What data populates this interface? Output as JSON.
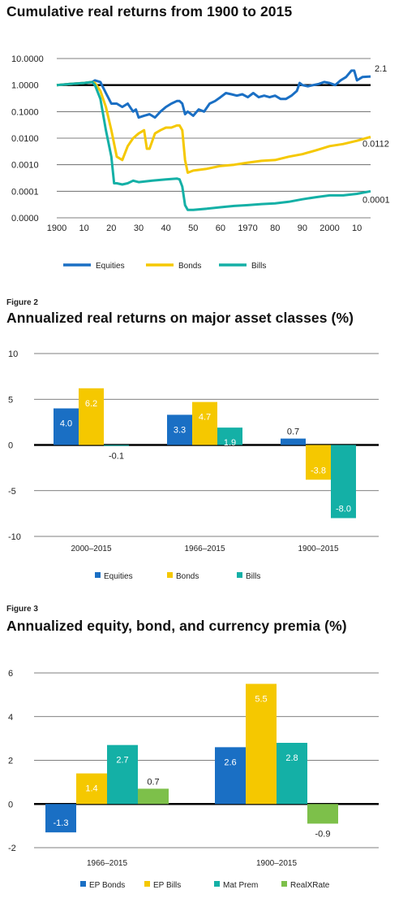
{
  "fig1": {
    "title": "Cumulative real returns from 1900 to 2015",
    "y_ticks": [
      "10.0000",
      "1.0000",
      "0.1000",
      "0.0100",
      "0.0010",
      "0.0001",
      "0.0000"
    ],
    "x_ticks": [
      "1900",
      "10",
      "20",
      "30",
      "40",
      "50",
      "60",
      "1970",
      "80",
      "90",
      "2000",
      "10"
    ],
    "end_labels": [
      "2.1",
      "0.0112",
      "0.0001"
    ],
    "legend": [
      "Equities",
      "Bonds",
      "Bills"
    ]
  },
  "fig2": {
    "label": "Figure 2",
    "title": "Annualized real returns on major asset classes (%)",
    "y_ticks": [
      "10",
      "5",
      "0",
      "-5",
      "-10"
    ],
    "legend": [
      "Equities",
      "Bonds",
      "Bills"
    ]
  },
  "fig3": {
    "label": "Figure 3",
    "title": "Annualized equity, bond, and currency premia (%)",
    "y_ticks": [
      "6",
      "4",
      "2",
      "0",
      "-2"
    ],
    "legend": [
      "EP Bonds",
      "EP Bills",
      "Mat Prem",
      "RealXRate"
    ]
  },
  "colors": {
    "blue": "#1a6fc4",
    "yellow": "#f5c800",
    "teal": "#14b0a6",
    "green": "#7dc04a"
  },
  "chart_data": [
    {
      "type": "line",
      "title": "Cumulative real returns from 1900 to 2015",
      "log_scale": true,
      "ylim": [
        1e-05,
        10
      ],
      "xlim": [
        1900,
        2015
      ],
      "series": [
        {
          "name": "Equities",
          "x": [
            1900,
            1905,
            1910,
            1913,
            1914,
            1916,
            1918,
            1920,
            1922,
            1924,
            1926,
            1928,
            1929,
            1930,
            1932,
            1934,
            1936,
            1938,
            1940,
            1942,
            1944,
            1945,
            1946,
            1947,
            1948,
            1950,
            1952,
            1954,
            1956,
            1958,
            1960,
            1962,
            1964,
            1966,
            1968,
            1970,
            1972,
            1974,
            1976,
            1978,
            1980,
            1982,
            1984,
            1986,
            1988,
            1989,
            1990,
            1992,
            1994,
            1996,
            1998,
            2000,
            2002,
            2004,
            2006,
            2008,
            2009,
            2010,
            2012,
            2015
          ],
          "y": [
            1.0,
            1.1,
            1.2,
            1.3,
            1.5,
            1.3,
            0.5,
            0.2,
            0.2,
            0.15,
            0.2,
            0.1,
            0.12,
            0.06,
            0.07,
            0.08,
            0.06,
            0.1,
            0.15,
            0.2,
            0.25,
            0.25,
            0.2,
            0.08,
            0.1,
            0.07,
            0.12,
            0.1,
            0.2,
            0.25,
            0.35,
            0.5,
            0.45,
            0.4,
            0.45,
            0.35,
            0.5,
            0.35,
            0.4,
            0.35,
            0.4,
            0.3,
            0.3,
            0.4,
            0.6,
            1.2,
            1.0,
            0.9,
            1.0,
            1.1,
            1.3,
            1.2,
            1.0,
            1.5,
            2.0,
            3.5,
            3.5,
            1.5,
            2.0,
            2.1
          ]
        },
        {
          "name": "Bonds",
          "x": [
            1900,
            1905,
            1910,
            1913,
            1914,
            1916,
            1918,
            1920,
            1922,
            1924,
            1926,
            1928,
            1930,
            1932,
            1933,
            1934,
            1936,
            1938,
            1940,
            1942,
            1944,
            1945,
            1946,
            1947,
            1948,
            1950,
            1955,
            1960,
            1965,
            1970,
            1975,
            1980,
            1985,
            1990,
            1995,
            2000,
            2005,
            2010,
            2015
          ],
          "y": [
            1.0,
            1.1,
            1.2,
            1.3,
            1.2,
            0.6,
            0.15,
            0.02,
            0.002,
            0.0015,
            0.005,
            0.01,
            0.015,
            0.02,
            0.004,
            0.004,
            0.015,
            0.02,
            0.025,
            0.025,
            0.03,
            0.03,
            0.02,
            0.0015,
            0.0005,
            0.0006,
            0.0007,
            0.0009,
            0.001,
            0.0012,
            0.0014,
            0.0015,
            0.002,
            0.0025,
            0.0035,
            0.005,
            0.006,
            0.008,
            0.0112
          ]
        },
        {
          "name": "Bills",
          "x": [
            1900,
            1905,
            1910,
            1913,
            1914,
            1916,
            1918,
            1920,
            1921,
            1922,
            1924,
            1926,
            1928,
            1930,
            1935,
            1940,
            1944,
            1945,
            1946,
            1947,
            1948,
            1950,
            1955,
            1960,
            1965,
            1970,
            1975,
            1980,
            1985,
            1990,
            1995,
            2000,
            2005,
            2010,
            2015
          ],
          "y": [
            1.0,
            1.1,
            1.2,
            1.3,
            1.0,
            0.3,
            0.02,
            0.002,
            0.0002,
            0.0002,
            0.00018,
            0.0002,
            0.00025,
            0.00022,
            0.00025,
            0.00028,
            0.0003,
            0.00028,
            0.00015,
            3e-05,
            2e-05,
            2e-05,
            2.2e-05,
            2.5e-05,
            2.8e-05,
            3e-05,
            3.3e-05,
            3.5e-05,
            4e-05,
            5e-05,
            6e-05,
            7e-05,
            7e-05,
            8e-05,
            0.0001
          ]
        }
      ]
    },
    {
      "type": "bar",
      "title": "Annualized real returns on major asset classes (%)",
      "categories": [
        "2000–2015",
        "1966–2015",
        "1900–2015"
      ],
      "ylim": [
        -10,
        10
      ],
      "series": [
        {
          "name": "Equities",
          "values": [
            4.0,
            3.3,
            0.7
          ],
          "labels": [
            "4.0",
            "3.3",
            "0.7"
          ]
        },
        {
          "name": "Bonds",
          "values": [
            6.2,
            4.7,
            -3.8
          ],
          "labels": [
            "6.2",
            "4.7",
            "-3.8"
          ]
        },
        {
          "name": "Bills",
          "values": [
            -0.1,
            1.9,
            -8.0
          ],
          "labels": [
            "-0.1",
            "1.9",
            "-8.0"
          ]
        }
      ]
    },
    {
      "type": "bar",
      "title": "Annualized equity, bond, and currency premia (%)",
      "categories": [
        "1966–2015",
        "1900–2015"
      ],
      "ylim": [
        -2,
        6
      ],
      "series": [
        {
          "name": "EP Bonds",
          "values": [
            -1.3,
            2.6
          ],
          "labels": [
            "-1.3",
            "2.6"
          ]
        },
        {
          "name": "EP Bills",
          "values": [
            1.4,
            5.5
          ],
          "labels": [
            "1.4",
            "5.5"
          ]
        },
        {
          "name": "Mat Prem",
          "values": [
            2.7,
            2.8
          ],
          "labels": [
            "2.7",
            "2.8"
          ]
        },
        {
          "name": "RealXRate",
          "values": [
            0.7,
            -0.9
          ],
          "labels": [
            "0.7",
            "-0.9"
          ]
        }
      ]
    }
  ]
}
